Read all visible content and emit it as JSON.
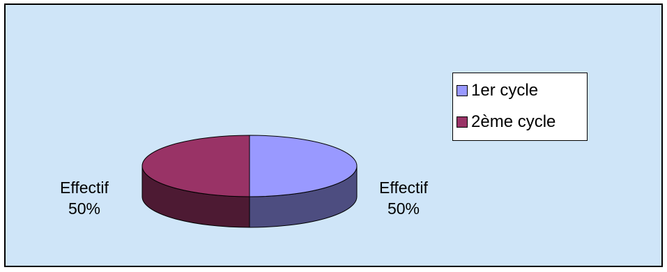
{
  "chart_data": {
    "type": "pie",
    "three_d": true,
    "title": "",
    "categories": [
      "1er cycle",
      "2ème cycle"
    ],
    "series": [
      {
        "values": [
          50,
          50
        ]
      }
    ],
    "data_labels": [
      {
        "series_name": "Effectif",
        "percent": "50%"
      },
      {
        "series_name": "Effectif",
        "percent": "50%"
      }
    ],
    "legend": {
      "position": "right",
      "items": [
        "1er cycle",
        "2ème cycle"
      ]
    },
    "colors": {
      "background": "#cfe5f8",
      "slice_1": "#9999ff",
      "slice_2": "#993366"
    }
  }
}
